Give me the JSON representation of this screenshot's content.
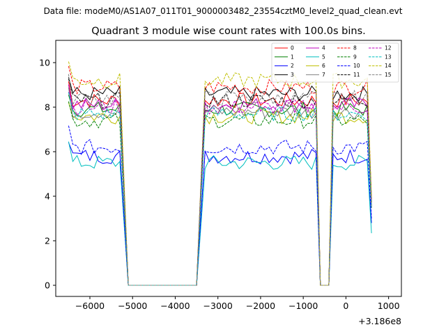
{
  "suptitle": "Data file: modeM0/AS1A07_011T01_9000003482_23554cztM0_level2_quad_clean.evt",
  "chart_data": {
    "type": "line",
    "title": "Quadrant 3 module wise count rates with 100.0s bins.",
    "xlabel": "",
    "ylabel": "",
    "x_offset_label": "+3.186e8",
    "xlim": [
      -6800,
      1300
    ],
    "ylim": [
      -0.5,
      11.0
    ],
    "xticks": [
      -6000,
      -5000,
      -4000,
      -3000,
      -2000,
      -1000,
      0,
      1000
    ],
    "xtick_labels": [
      "−6000",
      "−5000",
      "−4000",
      "−3000",
      "−2000",
      "−1000",
      "0",
      "1000"
    ],
    "yticks": [
      0,
      2,
      4,
      6,
      8,
      10
    ],
    "ytick_labels": [
      "0",
      "2",
      "4",
      "6",
      "8",
      "10"
    ],
    "grid": false,
    "legend_position": "top-right",
    "segments": [
      {
        "start": -6500,
        "end": -5300
      },
      {
        "start": -3300,
        "end": -700
      },
      {
        "start": -300,
        "end": 600
      }
    ],
    "gap_value": 0,
    "gap_x": [
      -5100,
      -4900,
      -4700,
      -4500,
      -4300,
      -4100,
      -3900,
      -3700,
      -3500,
      -600,
      -500,
      -400
    ],
    "series": [
      {
        "name": "0",
        "color": "#ff0000",
        "style": "solid",
        "level": 8.3
      },
      {
        "name": "1",
        "color": "#008000",
        "style": "solid",
        "level": 7.9
      },
      {
        "name": "2",
        "color": "#0000ff",
        "style": "solid",
        "level": 5.8
      },
      {
        "name": "3",
        "color": "#000000",
        "style": "solid",
        "level": 8.6
      },
      {
        "name": "4",
        "color": "#bf00bf",
        "style": "solid",
        "level": 8.1
      },
      {
        "name": "5",
        "color": "#00bfbf",
        "style": "solid",
        "level": 5.5
      },
      {
        "name": "6",
        "color": "#bfbf00",
        "style": "solid",
        "level": 7.6
      },
      {
        "name": "7",
        "color": "#808080",
        "style": "solid",
        "level": 7.8
      },
      {
        "name": "8",
        "color": "#ff0000",
        "style": "dashed",
        "level": 8.9
      },
      {
        "name": "9",
        "color": "#008000",
        "style": "dashed",
        "level": 7.4
      },
      {
        "name": "10",
        "color": "#0000ff",
        "style": "dashed",
        "level": 6.2
      },
      {
        "name": "11",
        "color": "#000000",
        "style": "dashed",
        "level": 8.3
      },
      {
        "name": "12",
        "color": "#bf00bf",
        "style": "dashed",
        "level": 8.0
      },
      {
        "name": "13",
        "color": "#00bfbf",
        "style": "dashed",
        "level": 7.7
      },
      {
        "name": "14",
        "color": "#bfbf00",
        "style": "dashed",
        "level": 9.2
      },
      {
        "name": "15",
        "color": "#808080",
        "style": "dashed",
        "level": 8.4
      }
    ]
  }
}
